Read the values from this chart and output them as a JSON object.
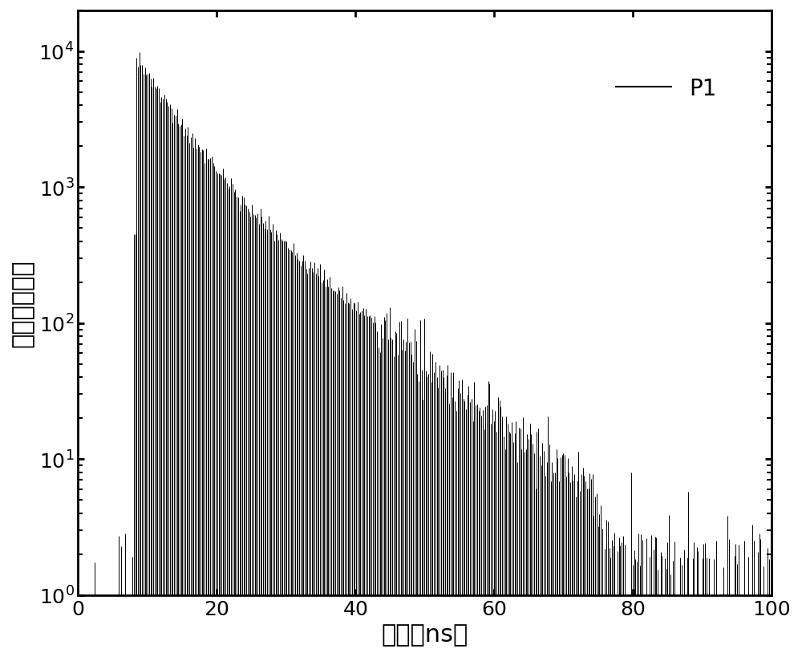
{
  "xlabel": "寿命（ns）",
  "ylabel": "光致发光强度",
  "xlim": [
    0,
    100
  ],
  "ylim": [
    1,
    20000
  ],
  "legend_label": "P1",
  "line_color": "#000000",
  "background_color": "#ffffff",
  "peak_x": 8.5,
  "peak_y": 9000,
  "tau1": 4.5,
  "tau2": 11.0,
  "noise_floor": 2.0,
  "xlabel_fontsize": 22,
  "ylabel_fontsize": 22,
  "tick_fontsize": 18,
  "legend_fontsize": 20,
  "n_bins": 500
}
